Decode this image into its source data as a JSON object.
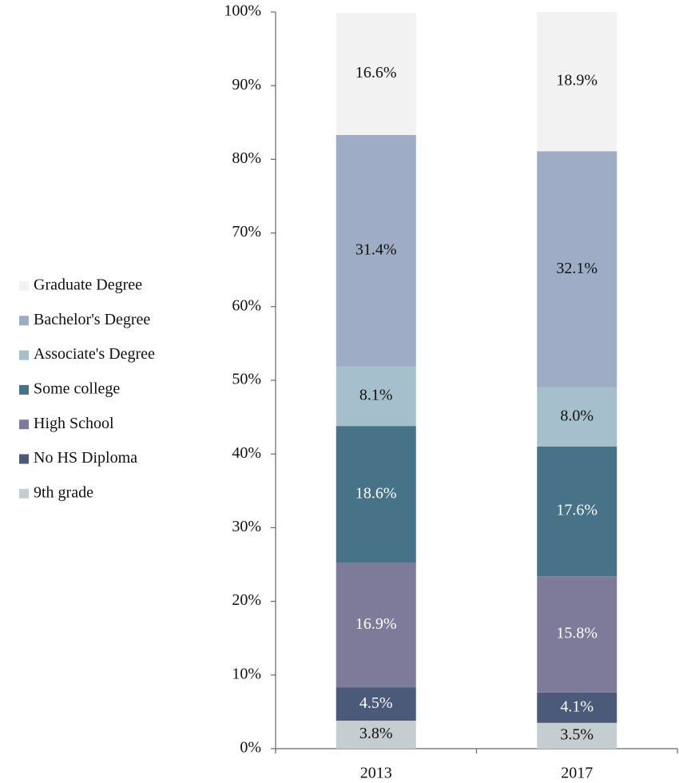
{
  "chart_data": {
    "type": "stacked_bar",
    "categories": [
      "2013",
      "2017"
    ],
    "series": [
      {
        "name": "9th grade",
        "color": "#c5cdd0",
        "values": [
          3.8,
          3.5
        ],
        "value_labels": [
          "3.8%",
          "3.5%"
        ]
      },
      {
        "name": "No HS Diploma",
        "color": "#4a5a78",
        "values": [
          4.5,
          4.1
        ],
        "value_labels": [
          "4.5%",
          "4.1%"
        ]
      },
      {
        "name": "High School",
        "color": "#7e7a9a",
        "values": [
          16.9,
          15.8
        ],
        "value_labels": [
          "16.9%",
          "15.8%"
        ]
      },
      {
        "name": "Some college",
        "color": "#477287",
        "values": [
          18.6,
          17.6
        ],
        "value_labels": [
          "18.6%",
          "17.6%"
        ]
      },
      {
        "name": "Associate's Degree",
        "color": "#a5c0cc",
        "values": [
          8.1,
          8.0
        ],
        "value_labels": [
          "8.1%",
          "8.0%"
        ]
      },
      {
        "name": "Bachelor's Degree",
        "color": "#9eacc6",
        "values": [
          31.4,
          32.1
        ],
        "value_labels": [
          "31.4%",
          "32.1%"
        ]
      },
      {
        "name": "Graduate Degree",
        "color": "#f2f2f2",
        "values": [
          16.6,
          18.9
        ],
        "value_labels": [
          "16.6%",
          "18.9%"
        ]
      }
    ],
    "ylim": [
      0,
      100
    ],
    "yticks": [
      {
        "value": 0,
        "label": "0%"
      },
      {
        "value": 10,
        "label": "10%"
      },
      {
        "value": 20,
        "label": "20%"
      },
      {
        "value": 30,
        "label": "30%"
      },
      {
        "value": 40,
        "label": "40%"
      },
      {
        "value": 50,
        "label": "50%"
      },
      {
        "value": 60,
        "label": "60%"
      },
      {
        "value": 70,
        "label": "70%"
      },
      {
        "value": 80,
        "label": "80%"
      },
      {
        "value": 90,
        "label": "90%"
      },
      {
        "value": 100,
        "label": "100%"
      }
    ],
    "legend": "left"
  }
}
